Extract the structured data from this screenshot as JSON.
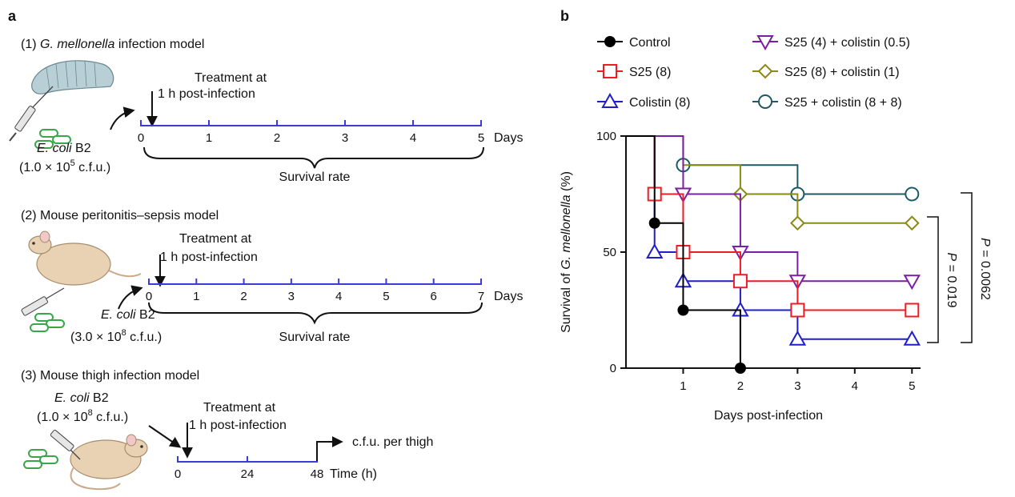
{
  "colors": {
    "timeline": "#3b3bd6",
    "larva": "#b9cfd6",
    "mouse": "#e9d2b3",
    "bacteria": "#3aa64a",
    "control": "#000000",
    "s25": "#ee1c24",
    "colistin": "#1f1fc8",
    "s25_colistin_low": "#7b1fa2",
    "s25_colistin_mid": "#8a8a16",
    "s25_colistin_high": "#1d5a66"
  },
  "panel_a": {
    "letter": "a",
    "model1": {
      "num": "(1) ",
      "species": "G. mellonella",
      "rest": " infection model",
      "treat_line1": "Treatment at",
      "treat_line2": "1 h post-infection",
      "ticks": [
        "0",
        "1",
        "2",
        "3",
        "4",
        "5"
      ],
      "unit": "Days",
      "inoculum_species": "E. coli",
      "inoculum_strain": " B2",
      "dose_prefix": "(1.0 × 10",
      "dose_exp": "5",
      "dose_suffix": " c.f.u.)",
      "bracket_label": "Survival rate",
      "icon": "larva-syringe-icon"
    },
    "model2": {
      "title": "(2) Mouse peritonitis–sepsis model",
      "treat_line1": "Treatment at",
      "treat_line2": "1 h post-infection",
      "ticks": [
        "0",
        "1",
        "2",
        "3",
        "4",
        "5",
        "6",
        "7"
      ],
      "unit": "Days",
      "inoculum_species": "E. coli",
      "inoculum_strain": " B2",
      "dose_prefix": "(3.0 × 10",
      "dose_exp": "8",
      "dose_suffix": " c.f.u.)",
      "bracket_label": "Survival rate",
      "icon": "mouse-syringe-icon"
    },
    "model3": {
      "title": "(3) Mouse thigh infection model",
      "inoculum_species": "E. coli",
      "inoculum_strain": " B2",
      "dose_prefix": "(1.0 × 10",
      "dose_exp": "8",
      "dose_suffix": " c.f.u.)",
      "treat_line1": "Treatment at",
      "treat_line2": "1 h post-infection",
      "ticks": [
        "0",
        "24",
        "48"
      ],
      "unit": "Time (h)",
      "endpoint": "c.f.u. per thigh",
      "icon": "mouse-thigh-icon"
    }
  },
  "panel_b": {
    "letter": "b",
    "pvalues": {
      "inner_text": " = 0.019",
      "outer_text": " = 0.0062",
      "p_symbol": "P"
    }
  },
  "chart_data": {
    "type": "line",
    "subtype": "kaplan-meier-step",
    "title": "",
    "xlabel": "Days post-infection",
    "ylabel_prefix": "Survival of ",
    "ylabel_species": "G. mellonella",
    "ylabel_suffix": " (%)",
    "xlim": [
      0,
      5.15
    ],
    "ylim": [
      0,
      100
    ],
    "xticks": [
      1,
      2,
      3,
      4,
      5
    ],
    "yticks": [
      0,
      50,
      100
    ],
    "grid": false,
    "legend_position": "top",
    "series": [
      {
        "name": "Control",
        "marker": "circle-filled",
        "color_key": "control",
        "x": [
          0,
          0.5,
          1,
          2
        ],
        "y": [
          100,
          62.5,
          25,
          0
        ],
        "markers_x": [
          0.5,
          1,
          2
        ],
        "markers_y": [
          62.5,
          25,
          0
        ]
      },
      {
        "name": "S25 (8)",
        "marker": "square",
        "color_key": "s25",
        "x": [
          0,
          0.5,
          1,
          2,
          3,
          5
        ],
        "y": [
          100,
          75,
          50,
          37.5,
          25,
          25
        ],
        "markers_x": [
          0.5,
          1,
          2,
          3,
          5
        ],
        "markers_y": [
          75,
          50,
          37.5,
          25,
          25
        ]
      },
      {
        "name": "Colistin (8)",
        "marker": "triangle-up",
        "color_key": "colistin",
        "x": [
          0,
          0.5,
          1,
          2,
          3,
          5
        ],
        "y": [
          100,
          50,
          37.5,
          25,
          12.5,
          12.5
        ],
        "markers_x": [
          0.5,
          1,
          2,
          3,
          5
        ],
        "markers_y": [
          50,
          37.5,
          25,
          12.5,
          12.5
        ]
      },
      {
        "name": "S25 (4) + colistin (0.5)",
        "marker": "triangle-down",
        "color_key": "s25_colistin_low",
        "x": [
          0,
          1,
          2,
          3,
          5
        ],
        "y": [
          100,
          75,
          50,
          37.5,
          37.5
        ],
        "markers_x": [
          1,
          2,
          3,
          5
        ],
        "markers_y": [
          75,
          50,
          37.5,
          37.5
        ]
      },
      {
        "name": "S25 (8) + colistin (1)",
        "marker": "diamond",
        "color_key": "s25_colistin_mid",
        "x": [
          0,
          1,
          2,
          3,
          5
        ],
        "y": [
          100,
          87.5,
          75,
          62.5,
          62.5
        ],
        "markers_x": [
          2,
          3,
          5
        ],
        "markers_y": [
          75,
          62.5,
          62.5
        ]
      },
      {
        "name": "S25 + colistin (8 + 8)",
        "marker": "circle-open",
        "color_key": "s25_colistin_high",
        "x": [
          0,
          1,
          3,
          5
        ],
        "y": [
          100,
          87.5,
          75,
          75
        ],
        "markers_x": [
          1,
          3,
          5
        ],
        "markers_y": [
          87.5,
          75,
          75
        ]
      }
    ]
  }
}
